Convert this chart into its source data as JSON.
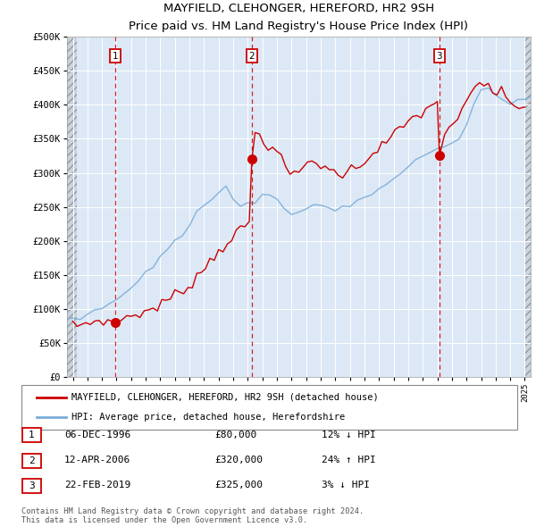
{
  "title": "MAYFIELD, CLEHONGER, HEREFORD, HR2 9SH",
  "subtitle": "Price paid vs. HM Land Registry's House Price Index (HPI)",
  "ylim": [
    0,
    500000
  ],
  "yticks": [
    0,
    50000,
    100000,
    150000,
    200000,
    250000,
    300000,
    350000,
    400000,
    450000,
    500000
  ],
  "ytick_labels": [
    "£0",
    "£50K",
    "£100K",
    "£150K",
    "£200K",
    "£250K",
    "£300K",
    "£350K",
    "£400K",
    "£450K",
    "£500K"
  ],
  "sales": [
    {
      "date_num": 1996.92,
      "price": 80000,
      "label": "1"
    },
    {
      "date_num": 2006.28,
      "price": 320000,
      "label": "2"
    },
    {
      "date_num": 2019.14,
      "price": 325000,
      "label": "3"
    }
  ],
  "sale_color": "#cc0000",
  "hpi_color": "#7aaddb",
  "vline_color": "#cc0000",
  "legend_items": [
    {
      "label": "MAYFIELD, CLEHONGER, HEREFORD, HR2 9SH (detached house)",
      "color": "#cc0000"
    },
    {
      "label": "HPI: Average price, detached house, Herefordshire",
      "color": "#7aaddb"
    }
  ],
  "table": [
    {
      "num": "1",
      "date": "06-DEC-1996",
      "price": "£80,000",
      "hpi": "12% ↓ HPI"
    },
    {
      "num": "2",
      "date": "12-APR-2006",
      "price": "£320,000",
      "hpi": "24% ↑ HPI"
    },
    {
      "num": "3",
      "date": "22-FEB-2019",
      "price": "£325,000",
      "hpi": "3% ↓ HPI"
    }
  ],
  "footnote": "Contains HM Land Registry data © Crown copyright and database right 2024.\nThis data is licensed under the Open Government Licence v3.0.",
  "bg_main_color": "#dce8f5",
  "xlim_start": 1993.6,
  "xlim_end": 2025.4,
  "hatch_right_start": 2025.0,
  "hatch_left_end": 1994.3,
  "hpi_years": [
    1993.6,
    1994,
    1994.5,
    1995,
    1995.5,
    1996,
    1996.5,
    1997,
    1997.5,
    1998,
    1998.5,
    1999,
    1999.5,
    2000,
    2000.5,
    2001,
    2001.5,
    2002,
    2002.5,
    2003,
    2003.5,
    2004,
    2004.5,
    2005,
    2005.5,
    2006,
    2006.5,
    2007,
    2007.5,
    2008,
    2008.5,
    2009,
    2009.5,
    2010,
    2010.5,
    2011,
    2011.5,
    2012,
    2012.5,
    2013,
    2013.5,
    2014,
    2014.5,
    2015,
    2015.5,
    2016,
    2016.5,
    2017,
    2017.5,
    2018,
    2018.5,
    2019,
    2019.5,
    2020,
    2020.5,
    2021,
    2021.5,
    2022,
    2022.5,
    2023,
    2023.5,
    2024,
    2024.5,
    2025,
    2025.4
  ],
  "hpi_vals": [
    82000,
    85000,
    88000,
    92000,
    97000,
    102000,
    107000,
    113000,
    122000,
    131000,
    140000,
    152000,
    163000,
    175000,
    187000,
    200000,
    210000,
    222000,
    240000,
    255000,
    265000,
    275000,
    280000,
    255000,
    248000,
    252000,
    255000,
    265000,
    268000,
    260000,
    248000,
    240000,
    242000,
    248000,
    250000,
    252000,
    248000,
    245000,
    248000,
    252000,
    258000,
    265000,
    270000,
    278000,
    285000,
    292000,
    300000,
    308000,
    318000,
    325000,
    330000,
    335000,
    340000,
    342000,
    348000,
    370000,
    395000,
    420000,
    425000,
    415000,
    408000,
    402000,
    405000,
    410000,
    412000
  ],
  "prop_years": [
    1994,
    1994.3,
    1994.6,
    1994.9,
    1995.2,
    1995.5,
    1995.8,
    1996.1,
    1996.4,
    1996.7,
    1996.92,
    1997.1,
    1997.4,
    1997.7,
    1998.0,
    1998.3,
    1998.6,
    1998.9,
    1999.2,
    1999.5,
    1999.8,
    2000.1,
    2000.4,
    2000.7,
    2001.0,
    2001.3,
    2001.6,
    2001.9,
    2002.2,
    2002.5,
    2002.8,
    2003.1,
    2003.4,
    2003.7,
    2004.0,
    2004.3,
    2004.6,
    2004.9,
    2005.2,
    2005.5,
    2005.8,
    2006.1,
    2006.28,
    2006.5,
    2006.8,
    2007.1,
    2007.4,
    2007.7,
    2008.0,
    2008.3,
    2008.6,
    2008.9,
    2009.2,
    2009.5,
    2009.8,
    2010.1,
    2010.4,
    2010.7,
    2011.0,
    2011.3,
    2011.6,
    2011.9,
    2012.2,
    2012.5,
    2012.8,
    2013.1,
    2013.4,
    2013.7,
    2014.0,
    2014.3,
    2014.6,
    2014.9,
    2015.2,
    2015.5,
    2015.8,
    2016.1,
    2016.4,
    2016.7,
    2017.0,
    2017.3,
    2017.6,
    2017.9,
    2018.2,
    2018.5,
    2018.8,
    2019.0,
    2019.14,
    2019.5,
    2019.8,
    2020.1,
    2020.4,
    2020.7,
    2021.0,
    2021.3,
    2021.6,
    2021.9,
    2022.2,
    2022.5,
    2022.8,
    2023.1,
    2023.4,
    2023.7,
    2024.0,
    2024.3,
    2024.6,
    2024.9,
    2025.0
  ],
  "prop_vals": [
    75000,
    76000,
    77000,
    78000,
    80000,
    82000,
    83000,
    83000,
    80000,
    79000,
    80000,
    82000,
    85000,
    88000,
    90000,
    92000,
    93000,
    95000,
    98000,
    100000,
    103000,
    107000,
    112000,
    116000,
    120000,
    125000,
    128000,
    133000,
    140000,
    148000,
    155000,
    162000,
    170000,
    178000,
    185000,
    192000,
    198000,
    205000,
    210000,
    215000,
    222000,
    225000,
    320000,
    360000,
    355000,
    345000,
    340000,
    345000,
    330000,
    318000,
    308000,
    300000,
    295000,
    300000,
    308000,
    315000,
    318000,
    315000,
    312000,
    308000,
    305000,
    300000,
    298000,
    300000,
    302000,
    305000,
    308000,
    312000,
    318000,
    325000,
    330000,
    335000,
    340000,
    345000,
    352000,
    358000,
    362000,
    368000,
    375000,
    380000,
    385000,
    388000,
    392000,
    395000,
    400000,
    405000,
    325000,
    360000,
    368000,
    375000,
    380000,
    390000,
    400000,
    415000,
    425000,
    430000,
    428000,
    432000,
    420000,
    415000,
    418000,
    408000,
    405000,
    400000,
    398000,
    395000,
    395000
  ]
}
